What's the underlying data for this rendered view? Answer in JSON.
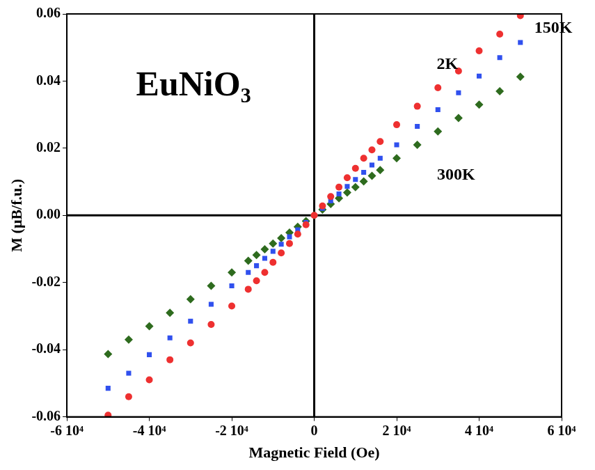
{
  "chart_data": {
    "type": "scatter",
    "title": "EuNiO₃",
    "x_label": "Magnetic Field (Oe)",
    "y_label": "M (μB/f.u.)",
    "xlim": [
      -60000,
      60000
    ],
    "xticks": [
      {
        "value": -60000,
        "label": "-6 10⁴"
      },
      {
        "value": -40000,
        "label": "-4 10⁴"
      },
      {
        "value": -20000,
        "label": "-2 10⁴"
      },
      0,
      {
        "value": 20000,
        "label": "2 10⁴"
      },
      {
        "value": 40000,
        "label": "4 10⁴"
      },
      {
        "value": 60000,
        "label": "6 10⁴"
      }
    ],
    "ylim": [
      -0.06,
      0.06
    ],
    "yticks": [
      -0.06,
      -0.04,
      -0.02,
      {
        "value": 0,
        "label": "0.00"
      },
      0.02,
      0.04,
      0.06
    ],
    "grid": false,
    "x": [
      -50000,
      -45000,
      -40000,
      -35000,
      -30000,
      -25000,
      -20000,
      -16000,
      -14000,
      -12000,
      -10000,
      -8000,
      -6000,
      -4000,
      -2000,
      0,
      2000,
      4000,
      6000,
      8000,
      10000,
      12000,
      14000,
      16000,
      20000,
      25000,
      30000,
      35000,
      40000,
      45000,
      50000
    ],
    "series": [
      {
        "name": "2K",
        "color": "#ee3030",
        "marker": "circle",
        "values": [
          -0.0595,
          -0.054,
          -0.049,
          -0.043,
          -0.038,
          -0.0325,
          -0.027,
          -0.022,
          -0.0195,
          -0.017,
          -0.014,
          -0.0112,
          -0.0084,
          -0.0056,
          -0.0028,
          0,
          0.0028,
          0.0056,
          0.0084,
          0.0112,
          0.014,
          0.017,
          0.0195,
          0.022,
          0.027,
          0.0325,
          0.038,
          0.043,
          0.049,
          0.054,
          0.0595
        ]
      },
      {
        "name": "150K",
        "color": "#3050ee",
        "marker": "square",
        "values": [
          -0.0515,
          -0.047,
          -0.0415,
          -0.0365,
          -0.0315,
          -0.0265,
          -0.021,
          -0.017,
          -0.015,
          -0.0128,
          -0.0107,
          -0.0086,
          -0.0064,
          -0.0043,
          -0.0021,
          0,
          0.0021,
          0.0043,
          0.0064,
          0.0086,
          0.0107,
          0.0128,
          0.015,
          0.017,
          0.021,
          0.0265,
          0.0315,
          0.0365,
          0.0415,
          0.047,
          0.0515
        ]
      },
      {
        "name": "300K",
        "color": "#2e6b1e",
        "marker": "diamond",
        "values": [
          -0.0413,
          -0.037,
          -0.033,
          -0.029,
          -0.025,
          -0.021,
          -0.017,
          -0.0135,
          -0.0118,
          -0.0101,
          -0.0084,
          -0.0068,
          -0.0051,
          -0.0034,
          -0.0017,
          0,
          0.0017,
          0.0034,
          0.0051,
          0.0068,
          0.0084,
          0.0101,
          0.0118,
          0.0135,
          0.017,
          0.021,
          0.025,
          0.029,
          0.033,
          0.037,
          0.0413
        ]
      }
    ],
    "annotations": [
      {
        "text": "2K",
        "x": 32300,
        "y": 0.045
      },
      {
        "text": "150K",
        "x": 58000,
        "y": 0.0557
      },
      {
        "text": "300K",
        "x": 34400,
        "y": 0.0119
      }
    ]
  }
}
